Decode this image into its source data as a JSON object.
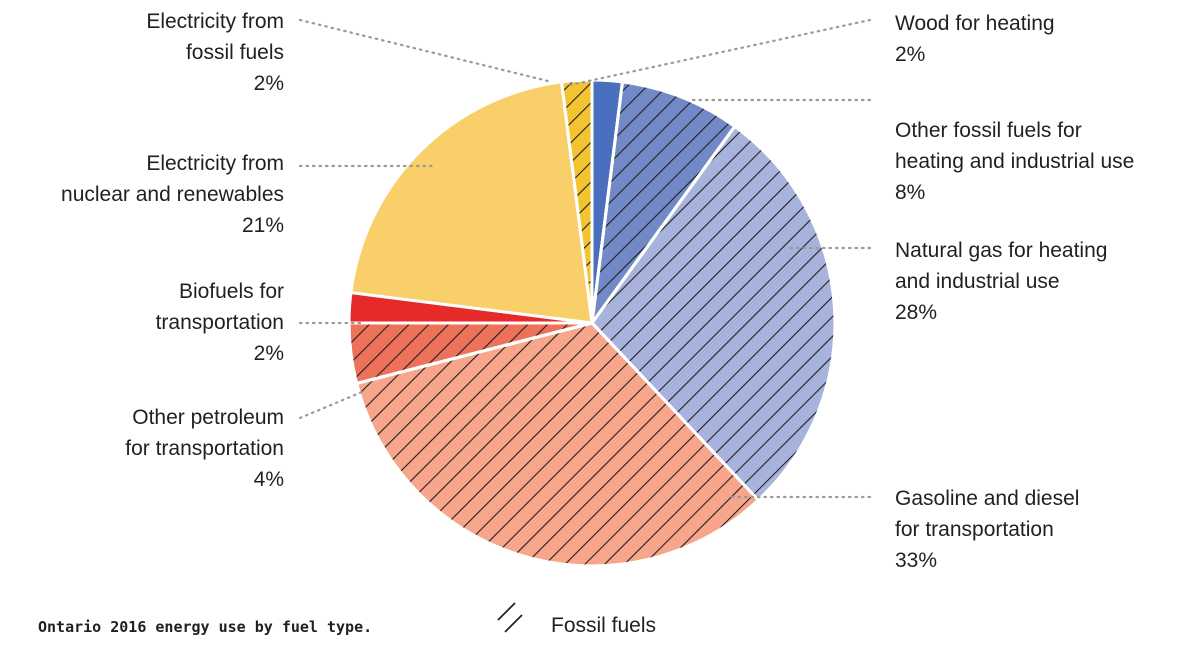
{
  "chart_data": {
    "type": "pie",
    "caption": "Ontario 2016 energy use by fuel type.",
    "legend": {
      "label": "Fossil fuels",
      "icon": "hatch-icon",
      "placement": "bottom"
    },
    "slices": [
      {
        "name": "Wood for heating",
        "label_lines": [
          "Wood for heating"
        ],
        "value": 2,
        "value_label": "2%",
        "color": "#4a6fbf",
        "fossil": false,
        "side": "right"
      },
      {
        "name": "Other fossil fuels for heating and industrial use",
        "label_lines": [
          "Other fossil fuels for",
          "heating and industrial use"
        ],
        "value": 8,
        "value_label": "8%",
        "color": "#7189c7",
        "fossil": true,
        "side": "right"
      },
      {
        "name": "Natural gas for heating and industrial use",
        "label_lines": [
          "Natural gas for heating",
          "and industrial use"
        ],
        "value": 28,
        "value_label": "28%",
        "color": "#a7b3dc",
        "fossil": true,
        "side": "right"
      },
      {
        "name": "Gasoline and diesel for transportation",
        "label_lines": [
          "Gasoline and diesel",
          "for transportation"
        ],
        "value": 33,
        "value_label": "33%",
        "color": "#f7a68b",
        "fossil": true,
        "side": "right"
      },
      {
        "name": "Other petroleum for transportation",
        "label_lines": [
          "Other petroleum",
          "for transportation"
        ],
        "value": 4,
        "value_label": "4%",
        "color": "#ee7259",
        "fossil": true,
        "side": "left"
      },
      {
        "name": "Biofuels for transportation",
        "label_lines": [
          "Biofuels for",
          "transportation"
        ],
        "value": 2,
        "value_label": "2%",
        "color": "#e62a29",
        "fossil": false,
        "side": "left"
      },
      {
        "name": "Electricity from nuclear and renewables",
        "label_lines": [
          "Electricity from",
          "nuclear and renewables"
        ],
        "value": 21,
        "value_label": "21%",
        "color": "#f8cf68",
        "fossil": false,
        "side": "left"
      },
      {
        "name": "Electricity from fossil fuels",
        "label_lines": [
          "Electricity from",
          "fossil fuels"
        ],
        "value": 2,
        "value_label": "2%",
        "color": "#f4c430",
        "fossil": true,
        "side": "left"
      }
    ]
  }
}
